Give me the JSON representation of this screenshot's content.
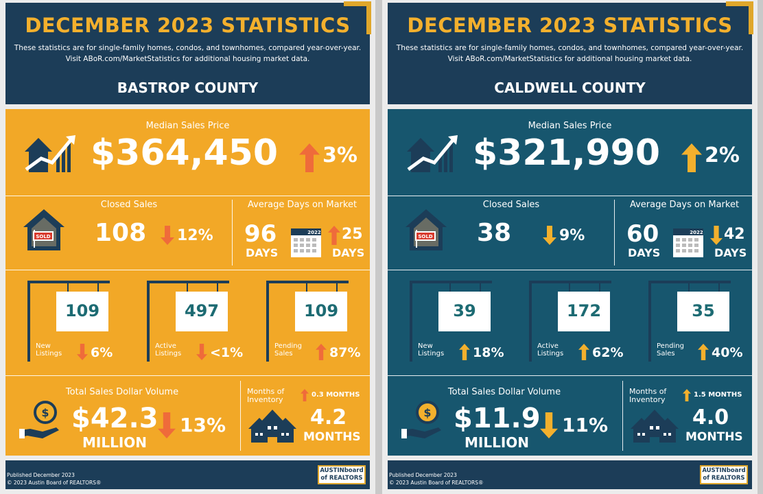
{
  "colors": {
    "gold": "#f3b02d",
    "navy": "#1c3d58",
    "teal": "#17566e",
    "orange": "#ef6b3a",
    "yellow": "#f2a827"
  },
  "panels": [
    {
      "title": "DECEMBER 2023 STATISTICS",
      "subtitle_line1": "These statistics are for single-family homes, condos, and townhomes, compared year-over-year.",
      "subtitle_line2": "Visit ABoR.com/MarketStatistics for additional housing market data.",
      "county": "BASTROP COUNTY",
      "median": {
        "label": "Median Sales Price",
        "value": "$364,450",
        "direction": "up",
        "change": "3%"
      },
      "closed": {
        "label": "Closed Sales",
        "value": "108",
        "direction": "down",
        "change": "12%",
        "sign": "SOLD"
      },
      "days": {
        "label": "Average Days on Market",
        "value": "96",
        "unit": "DAYS",
        "calendar_year": "2022",
        "direction": "up",
        "change": "25",
        "change_unit": "DAYS"
      },
      "signs": [
        {
          "value": "109",
          "label_line1": "New",
          "label_line2": "Listings",
          "direction": "down",
          "change": "6%"
        },
        {
          "value": "497",
          "label_line1": "Active",
          "label_line2": "Listings",
          "direction": "down",
          "change": "<1%"
        },
        {
          "value": "109",
          "label_line1": "Pending",
          "label_line2": "Sales",
          "direction": "up",
          "change": "87%"
        }
      ],
      "volume": {
        "label": "Total Sales Dollar Volume",
        "value": "$42.3",
        "unit": "MILLION",
        "direction": "down",
        "change": "13%"
      },
      "inventory": {
        "label_line1": "Months of",
        "label_line2": "Inventory",
        "direction": "up",
        "change": "0.3 MONTHS",
        "value": "4.2",
        "unit": "MONTHS"
      },
      "footer": {
        "published": "Published December 2023",
        "copyright": "© 2023 Austin Board of REALTORS®",
        "logo_line1": "AUSTINboard",
        "logo_line2": "of REALTORS"
      }
    },
    {
      "title": "DECEMBER 2023 STATISTICS",
      "subtitle_line1": "These statistics are for single-family homes, condos, and townhomes, compared year-over-year.",
      "subtitle_line2": "Visit ABoR.com/MarketStatistics for additional housing market data.",
      "county": "CALDWELL COUNTY",
      "median": {
        "label": "Median Sales Price",
        "value": "$321,990",
        "direction": "up",
        "change": "2%"
      },
      "closed": {
        "label": "Closed Sales",
        "value": "38",
        "direction": "down",
        "change": "9%",
        "sign": "SOLD"
      },
      "days": {
        "label": "Average Days on Market",
        "value": "60",
        "unit": "DAYS",
        "calendar_year": "2022",
        "direction": "down",
        "change": "42",
        "change_unit": "DAYS"
      },
      "signs": [
        {
          "value": "39",
          "label_line1": "New",
          "label_line2": "Listings",
          "direction": "up",
          "change": "18%"
        },
        {
          "value": "172",
          "label_line1": "Active",
          "label_line2": "Listings",
          "direction": "up",
          "change": "62%"
        },
        {
          "value": "35",
          "label_line1": "Pending",
          "label_line2": "Sales",
          "direction": "up",
          "change": "40%"
        }
      ],
      "volume": {
        "label": "Total Sales Dollar Volume",
        "value": "$11.9",
        "unit": "MILLION",
        "direction": "down",
        "change": "11%"
      },
      "inventory": {
        "label_line1": "Months of",
        "label_line2": "Inventory",
        "direction": "up",
        "change": "1.5 MONTHS",
        "value": "4.0",
        "unit": "MONTHS"
      },
      "footer": {
        "published": "Published December 2023",
        "copyright": "© 2023 Austin Board of REALTORS®",
        "logo_line1": "AUSTINboard",
        "logo_line2": "of REALTORS"
      }
    }
  ]
}
